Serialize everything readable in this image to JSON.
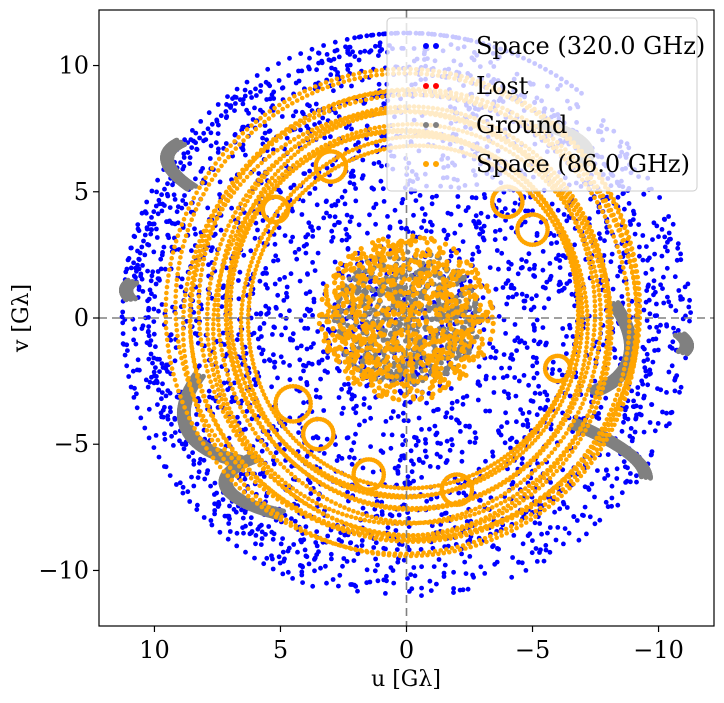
{
  "chart_data": {
    "type": "scatter",
    "title": "",
    "xlabel": "u [Gλ]",
    "ylabel": "v [Gλ]",
    "xlim": [
      12.2,
      -12.2
    ],
    "ylim": [
      -12.2,
      12.2
    ],
    "x_ticks": [
      10,
      5,
      0,
      -5,
      -10
    ],
    "x_tick_labels": [
      "10",
      "5",
      "0",
      "−5",
      "−10"
    ],
    "y_ticks": [
      10,
      5,
      0,
      -5,
      -10
    ],
    "y_tick_labels": [
      "10",
      "5",
      "0",
      "−5",
      "−10"
    ],
    "grid": false,
    "zero_lines": true,
    "legend_position": "top-right",
    "series": [
      {
        "name": "Space (320.0 GHz)",
        "color": "#0000ff",
        "marker": "dot",
        "description_points": {
          "distribution": "filled disk with ring arcs",
          "max_radius": 11.3
        }
      },
      {
        "name": "Lost",
        "color": "#ff0000",
        "marker": "dot",
        "description_points": {
          "count": 0
        }
      },
      {
        "name": "Ground",
        "color": "#808080",
        "marker": "dot",
        "description_points": {
          "distribution": "inner core ellipse plus tilted elliptical arcs",
          "core_radius": 2.8
        }
      },
      {
        "name": "Space (86.0 GHz)",
        "color": "#ffa500",
        "marker": "dot",
        "description_points": {
          "distribution": "dense inner blob plus nested elliptical loops",
          "core_radius": 3.2,
          "loop_radius_range": [
            6.5,
            9.5
          ]
        }
      }
    ],
    "legend": [
      {
        "label": "Space (320.0 GHz)",
        "color": "#0000ff"
      },
      {
        "label": "Lost",
        "color": "#ff0000"
      },
      {
        "label": "Ground",
        "color": "#808080"
      },
      {
        "label": "Space (86.0 GHz)",
        "color": "#ffa500"
      }
    ]
  }
}
